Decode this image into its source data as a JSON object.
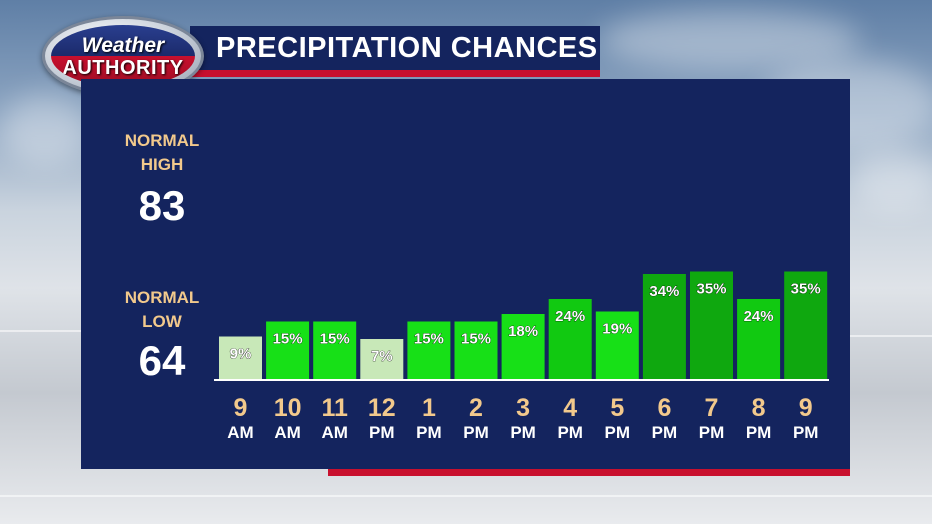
{
  "header": {
    "title": "PRECIPITATION CHANCES"
  },
  "logo": {
    "line1": "Weather",
    "line2": "AUTHORITY"
  },
  "normals": {
    "high_label_1": "NORMAL",
    "high_label_2": "HIGH",
    "high_value": "83",
    "low_label_1": "NORMAL",
    "low_label_2": "LOW",
    "low_value": "64"
  },
  "colors": {
    "panel": "#14245e",
    "accent_red": "#c8102e",
    "label_tan": "#f2c98c",
    "bar_low": "#c8e8b8",
    "bar_mid": "#17e017",
    "bar_mid_2": "#11c911",
    "bar_high": "#0fa80f"
  },
  "chart_data": {
    "type": "bar",
    "title": "PRECIPITATION CHANCES",
    "categories": [
      {
        "hour": "9",
        "period": "AM"
      },
      {
        "hour": "10",
        "period": "AM"
      },
      {
        "hour": "11",
        "period": "AM"
      },
      {
        "hour": "12",
        "period": "PM"
      },
      {
        "hour": "1",
        "period": "PM"
      },
      {
        "hour": "2",
        "period": "PM"
      },
      {
        "hour": "3",
        "period": "PM"
      },
      {
        "hour": "4",
        "period": "PM"
      },
      {
        "hour": "5",
        "period": "PM"
      },
      {
        "hour": "6",
        "period": "PM"
      },
      {
        "hour": "7",
        "period": "PM"
      },
      {
        "hour": "8",
        "period": "PM"
      },
      {
        "hour": "9",
        "period": "PM"
      }
    ],
    "values": [
      9,
      15,
      15,
      7,
      15,
      15,
      18,
      24,
      19,
      34,
      35,
      24,
      35
    ],
    "value_labels": [
      "9%",
      "15%",
      "15%",
      "7%",
      "15%",
      "15%",
      "18%",
      "24%",
      "19%",
      "34%",
      "35%",
      "24%",
      "35%"
    ],
    "unit": "%",
    "ylim": [
      0,
      60
    ],
    "grid": false,
    "legend": "none"
  }
}
